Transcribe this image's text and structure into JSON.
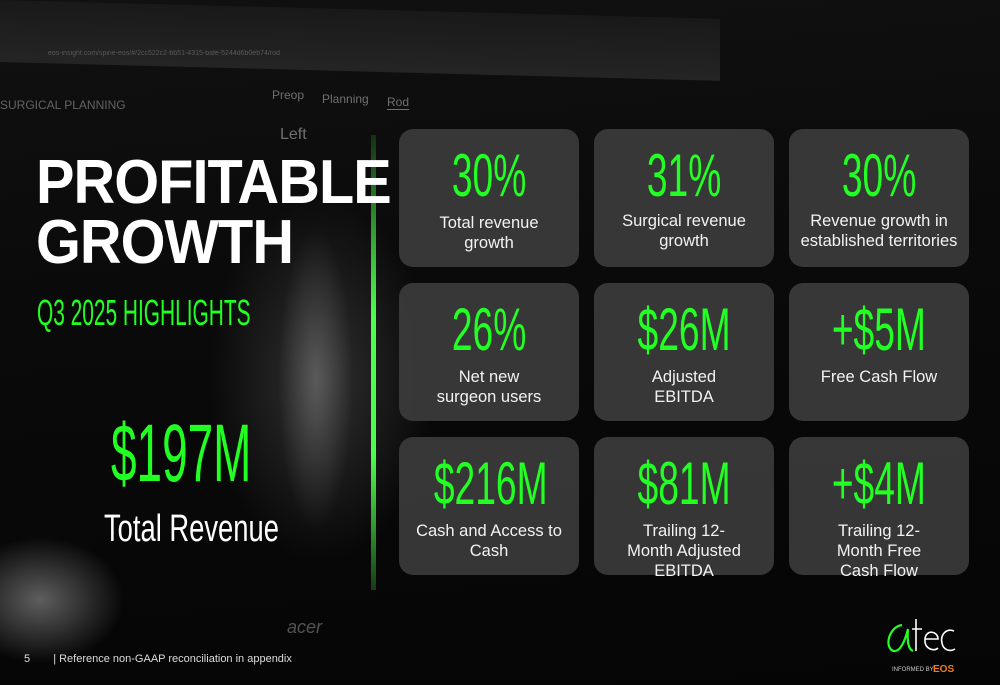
{
  "background_photo": {
    "browser_url": "eos-insight.com/spine-eos/#/2cc522c2-bb51-4315-bafe-5244d6b0eb74/rod",
    "breadcrumb": [
      "Preop",
      "Planning",
      "Rod"
    ],
    "panel_title": "SURGICAL PLANNING",
    "view_label": "Left",
    "monitor_brand": "acer"
  },
  "header": {
    "title_line1": "PROFITABLE",
    "title_line2": "GROWTH",
    "subtitle": "Q3 2025 HIGHLIGHTS"
  },
  "hero": {
    "value": "$197M",
    "label": "Total Revenue"
  },
  "metrics": [
    {
      "value": "30%",
      "label": "Total revenue growth"
    },
    {
      "value": "31%",
      "label": "Surgical revenue growth"
    },
    {
      "value": "30%",
      "label": "Revenue growth in established territories"
    },
    {
      "value": "26%",
      "label": "Net new surgeon users"
    },
    {
      "value": "$26M",
      "label": "Adjusted EBITDA"
    },
    {
      "value": "+$5M",
      "label": "Free Cash Flow"
    },
    {
      "value": "$216M",
      "label": "Cash and Access to Cash"
    },
    {
      "value": "$81M",
      "label": "Trailing 12-Month Adjusted EBITDA"
    },
    {
      "value": "+$4M",
      "label": "Trailing 12-Month Free Cash Flow"
    }
  ],
  "footer": {
    "page_number": "5",
    "note": "| Reference non-GAAP reconciliation in appendix"
  },
  "logo": {
    "text": "atec",
    "tagline": "INFORMED BY",
    "brand": "EOS"
  },
  "colors": {
    "accent": "#22ff22",
    "card": "#3e3e3e",
    "eos_orange": "#f07d1a"
  }
}
